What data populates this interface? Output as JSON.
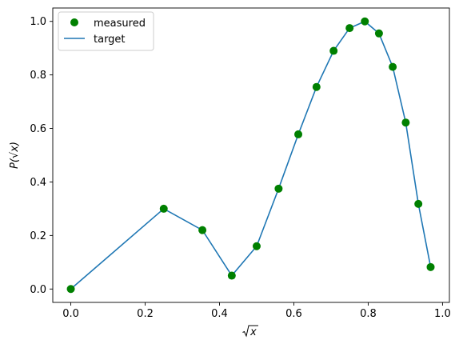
{
  "chart_data": {
    "type": "line",
    "title": "",
    "xlabel_base": "x",
    "ylabel": "P(√x)",
    "xlim": [
      -0.0485,
      1.0185
    ],
    "ylim": [
      -0.05,
      1.05
    ],
    "x_ticks": [
      0.0,
      0.2,
      0.4,
      0.6,
      0.8,
      1.0
    ],
    "x_tick_labels": [
      "0.0",
      "0.2",
      "0.4",
      "0.6",
      "0.8",
      "1.0"
    ],
    "y_ticks": [
      0.0,
      0.2,
      0.4,
      0.6,
      0.8,
      1.0
    ],
    "y_tick_labels": [
      "0.0",
      "0.2",
      "0.4",
      "0.6",
      "0.8",
      "1.0"
    ],
    "grid": false,
    "legend": "top-left",
    "series": [
      {
        "name": "measured",
        "kind": "scatter",
        "color": "#008000",
        "x": [
          0.0,
          0.25,
          0.354,
          0.433,
          0.5,
          0.559,
          0.612,
          0.661,
          0.707,
          0.75,
          0.791,
          0.829,
          0.866,
          0.901,
          0.935,
          0.968
        ],
        "y": [
          0.0,
          0.3,
          0.22,
          0.05,
          0.16,
          0.375,
          0.578,
          0.755,
          0.89,
          0.975,
          1.0,
          0.955,
          0.83,
          0.622,
          0.318,
          0.082
        ]
      },
      {
        "name": "target",
        "kind": "line",
        "color": "#1f77b4",
        "x": [
          0.0,
          0.25,
          0.354,
          0.433,
          0.5,
          0.559,
          0.612,
          0.661,
          0.707,
          0.75,
          0.791,
          0.829,
          0.866,
          0.901,
          0.935,
          0.968
        ],
        "y": [
          0.0,
          0.3,
          0.22,
          0.05,
          0.16,
          0.375,
          0.578,
          0.755,
          0.89,
          0.975,
          1.0,
          0.955,
          0.83,
          0.622,
          0.318,
          0.082
        ]
      }
    ]
  }
}
